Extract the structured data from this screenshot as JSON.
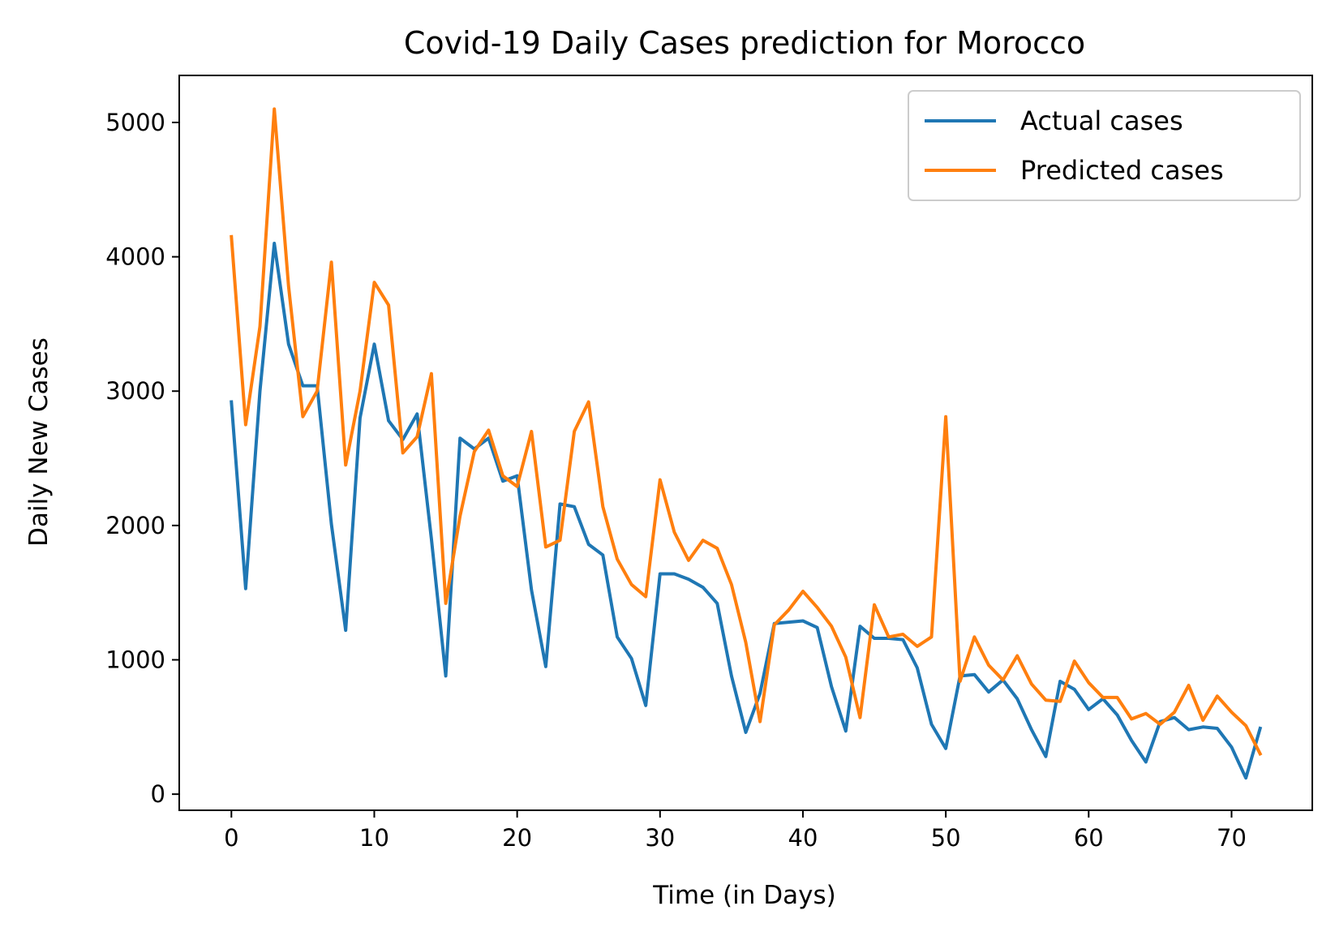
{
  "chart_data": {
    "type": "line",
    "title": "Covid-19 Daily Cases prediction for Morocco",
    "xlabel": "Time (in Days)",
    "ylabel": "Daily New Cases",
    "xlim": [
      -3.65,
      75.65
    ],
    "ylim": [
      -120,
      5350
    ],
    "xticks": [
      0,
      10,
      20,
      30,
      40,
      50,
      60,
      70
    ],
    "yticks": [
      0,
      1000,
      2000,
      3000,
      4000,
      5000
    ],
    "grid": false,
    "legend_position": "top-right",
    "series": [
      {
        "name": "Actual cases",
        "color": "#1f77b4",
        "x": [
          0,
          1,
          2,
          3,
          4,
          5,
          6,
          7,
          8,
          9,
          10,
          11,
          12,
          13,
          14,
          15,
          16,
          17,
          18,
          19,
          20,
          21,
          22,
          23,
          24,
          25,
          26,
          27,
          28,
          29,
          30,
          31,
          32,
          33,
          34,
          35,
          36,
          37,
          38,
          39,
          40,
          41,
          42,
          43,
          44,
          45,
          46,
          47,
          48,
          49,
          50,
          51,
          52,
          53,
          54,
          55,
          56,
          57,
          58,
          59,
          60,
          61,
          62,
          63,
          64,
          65,
          66,
          67,
          68,
          69,
          70,
          71,
          72
        ],
        "values": [
          2920,
          1530,
          3000,
          4100,
          3350,
          3040,
          3040,
          2010,
          1220,
          2800,
          3350,
          2780,
          2640,
          2830,
          1900,
          880,
          2650,
          2570,
          2650,
          2330,
          2370,
          1520,
          950,
          2160,
          2140,
          1860,
          1780,
          1170,
          1010,
          660,
          1640,
          1640,
          1600,
          1540,
          1420,
          880,
          460,
          750,
          1270,
          1280,
          1290,
          1240,
          800,
          470,
          1250,
          1160,
          1160,
          1150,
          940,
          520,
          340,
          880,
          890,
          760,
          850,
          710,
          480,
          280,
          840,
          780,
          630,
          710,
          590,
          400,
          240,
          540,
          570,
          480,
          500,
          490,
          350,
          120,
          490
        ]
      },
      {
        "name": "Predicted cases",
        "color": "#ff7f0e",
        "x": [
          0,
          1,
          2,
          3,
          4,
          5,
          6,
          7,
          8,
          9,
          10,
          11,
          12,
          13,
          14,
          15,
          16,
          17,
          18,
          19,
          20,
          21,
          22,
          23,
          24,
          25,
          26,
          27,
          28,
          29,
          30,
          31,
          32,
          33,
          34,
          35,
          36,
          37,
          38,
          39,
          40,
          41,
          42,
          43,
          44,
          45,
          46,
          47,
          48,
          49,
          50,
          51,
          52,
          53,
          54,
          55,
          56,
          57,
          58,
          59,
          60,
          61,
          62,
          63,
          64,
          65,
          66,
          67,
          68,
          69,
          70,
          71,
          72
        ],
        "values": [
          4150,
          2750,
          3480,
          5100,
          3780,
          2810,
          3000,
          3960,
          2450,
          3000,
          3810,
          3640,
          2540,
          2660,
          3130,
          1420,
          2070,
          2550,
          2710,
          2370,
          2290,
          2700,
          1840,
          1890,
          2700,
          2920,
          2140,
          1750,
          1560,
          1470,
          2340,
          1950,
          1740,
          1890,
          1830,
          1560,
          1130,
          540,
          1260,
          1370,
          1510,
          1390,
          1250,
          1020,
          570,
          1410,
          1170,
          1190,
          1100,
          1170,
          2810,
          840,
          1170,
          960,
          850,
          1030,
          820,
          700,
          690,
          990,
          830,
          720,
          720,
          560,
          600,
          520,
          610,
          810,
          550,
          730,
          610,
          510,
          300
        ]
      }
    ]
  }
}
